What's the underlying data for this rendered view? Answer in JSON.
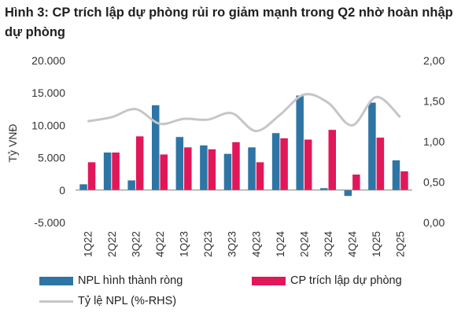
{
  "title": "Hình 3: CP trích lập dự phòng rủi ro giảm mạnh trong Q2 nhờ hoàn nhập dự phòng",
  "chart_data": {
    "type": "bar",
    "categories": [
      "1Q22",
      "2Q22",
      "3Q22",
      "4Q22",
      "1Q23",
      "2Q23",
      "3Q23",
      "4Q23",
      "1Q24",
      "2Q24",
      "3Q24",
      "4Q24",
      "1Q25",
      "2Q25"
    ],
    "series": [
      {
        "name": "NPL hình thành ròng",
        "type": "bar",
        "axis": "left",
        "color": "#2e75a6",
        "values": [
          900,
          5800,
          1500,
          13100,
          8200,
          6900,
          5600,
          6600,
          8800,
          14600,
          300,
          -900,
          13500,
          4600
        ]
      },
      {
        "name": "CP trích lập dự phòng",
        "type": "bar",
        "axis": "left",
        "color": "#e0185a",
        "values": [
          4300,
          5800,
          8300,
          5500,
          6600,
          6300,
          7400,
          4300,
          8000,
          7800,
          9300,
          2400,
          8100,
          2900
        ]
      },
      {
        "name": "Tỷ lệ NPL (%-RHS)",
        "type": "line",
        "axis": "right",
        "color": "#c6c6c6",
        "values": [
          1.25,
          1.3,
          1.4,
          1.22,
          1.28,
          1.27,
          1.35,
          1.13,
          1.33,
          1.58,
          1.48,
          1.2,
          1.55,
          1.3
        ]
      }
    ],
    "ylabel": "Tỷ VNĐ",
    "ylim": [
      -5000,
      20000
    ],
    "yticks": [
      "-5.000",
      "0",
      "5.000",
      "10.000",
      "15.000",
      "20.000"
    ],
    "y2lim": [
      0,
      2
    ],
    "y2ticks": [
      "0,00",
      "0,50",
      "1,00",
      "1,50",
      "2,00"
    ],
    "grid": false,
    "legend": "bottom"
  }
}
